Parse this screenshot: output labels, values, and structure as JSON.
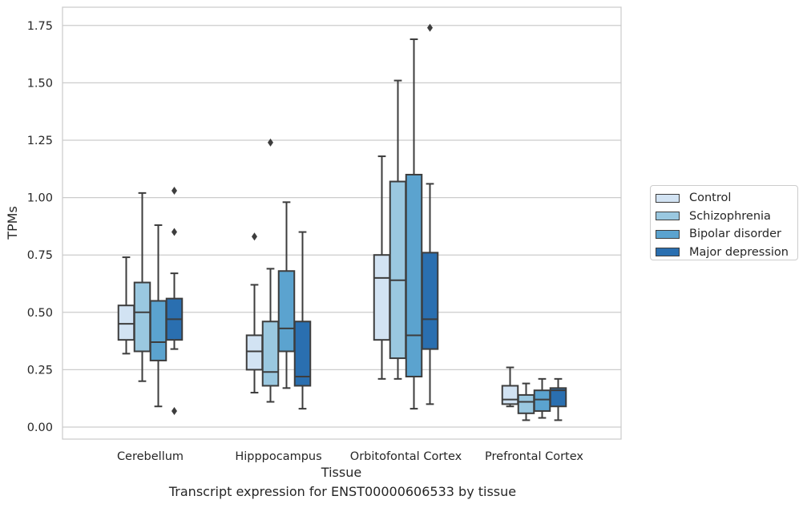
{
  "chart_data": {
    "type": "box",
    "title": "",
    "caption": "Transcript expression for ENST00000606533 by tissue",
    "xlabel": "Tissue",
    "ylabel": "TPMs",
    "ylim": [
      -0.05,
      1.83
    ],
    "yticks": [
      0.0,
      0.25,
      0.5,
      0.75,
      1.0,
      1.25,
      1.5,
      1.75
    ],
    "ytick_labels": [
      "0.00",
      "0.25",
      "0.50",
      "0.75",
      "1.00",
      "1.25",
      "1.50",
      "1.75"
    ],
    "grid": "horizontal",
    "legend_position": "right",
    "categories": [
      "Cerebellum",
      "Hipppocampus",
      "Orbitofontal Cortex",
      "Prefrontal Cortex"
    ],
    "series": [
      {
        "name": "Control",
        "color": "#d2e3f3",
        "boxes": [
          {
            "whislo": 0.32,
            "q1": 0.38,
            "med": 0.45,
            "q3": 0.53,
            "whishi": 0.74,
            "fliers": []
          },
          {
            "whislo": 0.15,
            "q1": 0.25,
            "med": 0.33,
            "q3": 0.4,
            "whishi": 0.62,
            "fliers": [
              0.83
            ]
          },
          {
            "whislo": 0.21,
            "q1": 0.38,
            "med": 0.65,
            "q3": 0.75,
            "whishi": 1.18,
            "fliers": []
          },
          {
            "whislo": 0.09,
            "q1": 0.1,
            "med": 0.12,
            "q3": 0.18,
            "whishi": 0.26,
            "fliers": []
          }
        ]
      },
      {
        "name": "Schizophrenia",
        "color": "#9ac8e0",
        "boxes": [
          {
            "whislo": 0.2,
            "q1": 0.33,
            "med": 0.5,
            "q3": 0.63,
            "whishi": 1.02,
            "fliers": []
          },
          {
            "whislo": 0.11,
            "q1": 0.18,
            "med": 0.24,
            "q3": 0.46,
            "whishi": 0.69,
            "fliers": [
              1.24
            ]
          },
          {
            "whislo": 0.21,
            "q1": 0.3,
            "med": 0.64,
            "q3": 1.07,
            "whishi": 1.51,
            "fliers": []
          },
          {
            "whislo": 0.03,
            "q1": 0.06,
            "med": 0.11,
            "q3": 0.14,
            "whishi": 0.19,
            "fliers": []
          }
        ]
      },
      {
        "name": "Bipolar disorder",
        "color": "#5ba3cf",
        "boxes": [
          {
            "whislo": 0.09,
            "q1": 0.29,
            "med": 0.37,
            "q3": 0.55,
            "whishi": 0.88,
            "fliers": []
          },
          {
            "whislo": 0.17,
            "q1": 0.33,
            "med": 0.43,
            "q3": 0.68,
            "whishi": 0.98,
            "fliers": []
          },
          {
            "whislo": 0.08,
            "q1": 0.22,
            "med": 0.4,
            "q3": 1.1,
            "whishi": 1.69,
            "fliers": []
          },
          {
            "whislo": 0.04,
            "q1": 0.07,
            "med": 0.12,
            "q3": 0.16,
            "whishi": 0.21,
            "fliers": []
          }
        ]
      },
      {
        "name": "Major depression",
        "color": "#2a6fb0",
        "boxes": [
          {
            "whislo": 0.34,
            "q1": 0.38,
            "med": 0.47,
            "q3": 0.56,
            "whishi": 0.67,
            "fliers": [
              1.03,
              0.85,
              0.07
            ]
          },
          {
            "whislo": 0.08,
            "q1": 0.18,
            "med": 0.22,
            "q3": 0.46,
            "whishi": 0.85,
            "fliers": []
          },
          {
            "whislo": 0.1,
            "q1": 0.34,
            "med": 0.47,
            "q3": 0.76,
            "whishi": 1.06,
            "fliers": [
              1.74
            ]
          },
          {
            "whislo": 0.03,
            "q1": 0.09,
            "med": 0.16,
            "q3": 0.17,
            "whishi": 0.21,
            "fliers": []
          }
        ]
      }
    ]
  }
}
